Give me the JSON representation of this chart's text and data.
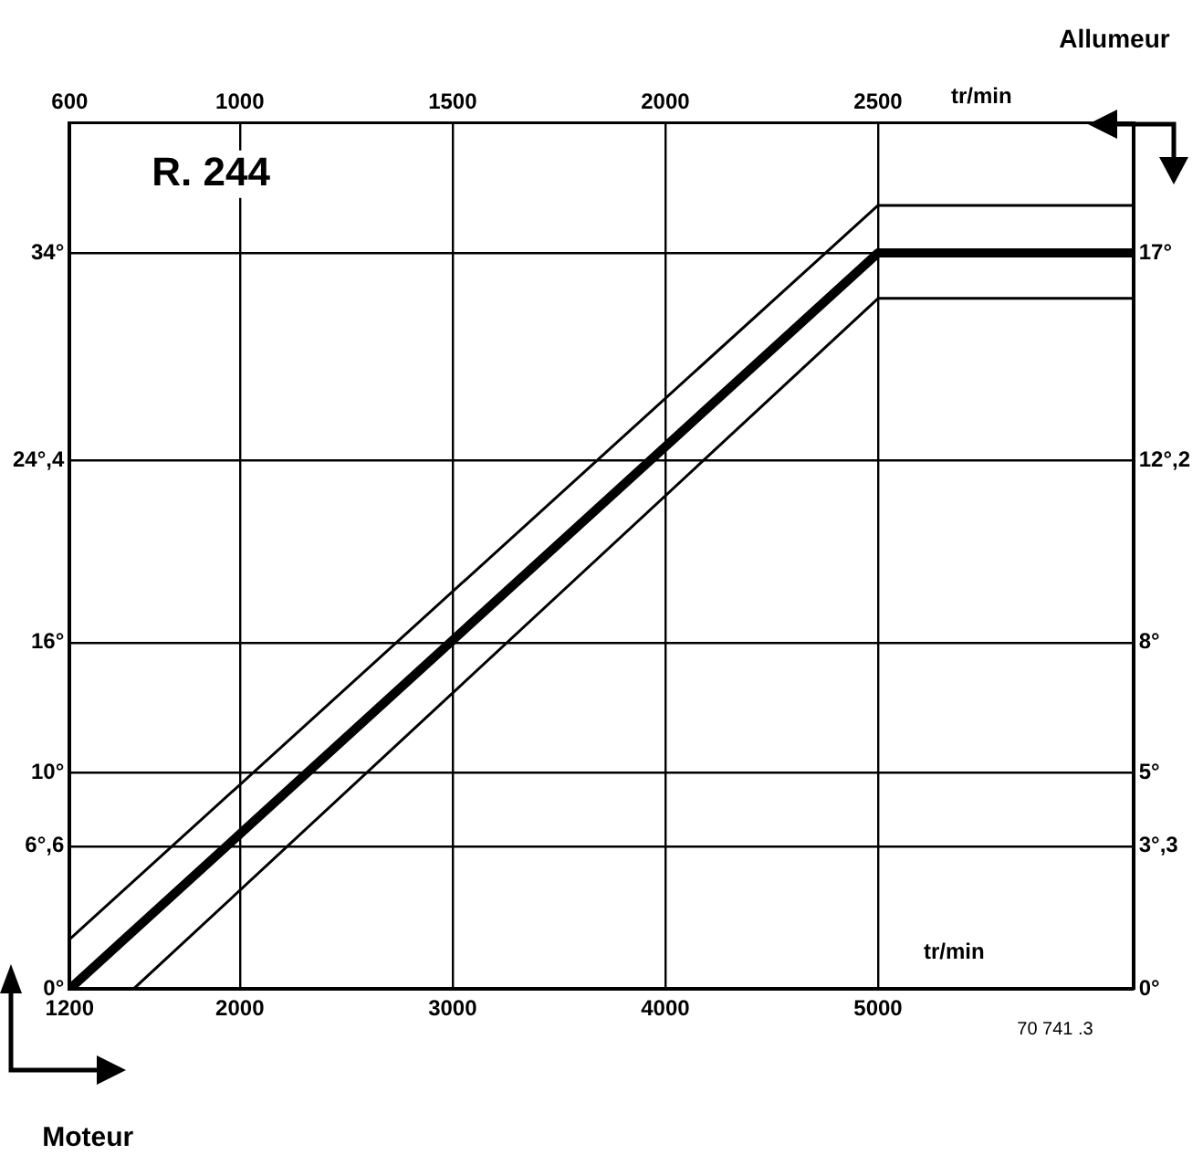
{
  "chart_data": {
    "type": "line",
    "xlabel": "tr/min",
    "x2label": "tr/min",
    "annotations": [
      "R. 244",
      "70 741 .3",
      "Allumeur",
      "Moteur"
    ],
    "xlim": [
      1200,
      6200
    ],
    "xticks": [
      1200,
      2000,
      3000,
      4000,
      5000
    ],
    "x2lim": [
      600,
      3100
    ],
    "x2ticks": [
      600,
      1000,
      1500,
      2000,
      2500
    ],
    "ylim": [
      0,
      40
    ],
    "yticks": [
      {
        "value": 0,
        "label": "0°"
      },
      {
        "value": 6.6,
        "label": "6°,6"
      },
      {
        "value": 10,
        "label": "10°"
      },
      {
        "value": 16,
        "label": "16°"
      },
      {
        "value": 24.4,
        "label": "24°,4"
      },
      {
        "value": 34,
        "label": "34°"
      }
    ],
    "y2lim": [
      0,
      20
    ],
    "y2ticks": [
      {
        "value": 0,
        "label": "0°"
      },
      {
        "value": 3.3,
        "label": "3°,3"
      },
      {
        "value": 5,
        "label": "5°"
      },
      {
        "value": 8,
        "label": "8°"
      },
      {
        "value": 12.2,
        "label": "12°,2"
      },
      {
        "value": 17,
        "label": "17°"
      }
    ],
    "series": [
      {
        "color": "#000000",
        "x": [
          1200,
          5000,
          6200
        ],
        "values": [
          0,
          34,
          34
        ]
      },
      {
        "color": "#000000",
        "x": [
          1200,
          5000,
          6200
        ],
        "values": [
          2.3,
          36.2,
          36.2
        ]
      },
      {
        "color": "#000000",
        "x": [
          1500,
          5000,
          6200
        ],
        "values": [
          0,
          31.9,
          31.9
        ]
      }
    ],
    "grid": true,
    "legend": false,
    "marker": "none",
    "line_style": "solid"
  }
}
